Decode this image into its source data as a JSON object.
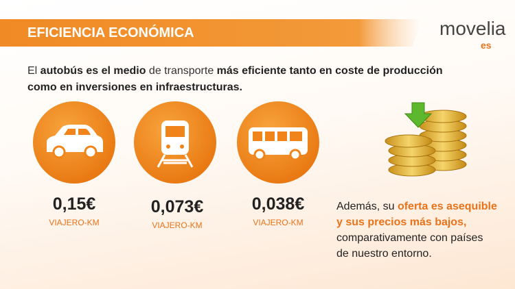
{
  "header": {
    "title": "EFICIENCIA ECONÓMICA"
  },
  "logo": {
    "name": "movelia",
    "suffix": "es"
  },
  "intro": {
    "segments": [
      "El ",
      "autobús es el medio",
      " de transporte ",
      "más eficiente tanto en coste de producción",
      "como en inversiones en infraestructuras."
    ]
  },
  "items": [
    {
      "icon": "car",
      "value": "0,15€",
      "unit": "VIAJERO-KM"
    },
    {
      "icon": "train",
      "value": "0,073€",
      "unit": "VIAJERO-KM"
    },
    {
      "icon": "bus",
      "value": "0,038€",
      "unit": "VIAJERO-KM"
    }
  ],
  "side_text": {
    "segments": [
      "Además, su ",
      "oferta es asequible",
      "y sus precios más bajos,",
      "comparativamente con países",
      "de nuestro entorno."
    ]
  }
}
